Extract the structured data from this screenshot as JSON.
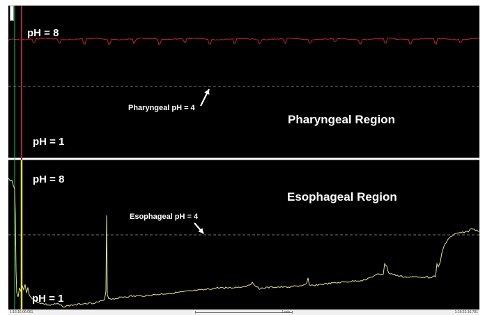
{
  "pharyngeal": {
    "ph_top": "pH = 8",
    "ph_bottom": "pH = 1",
    "threshold_label": "Pharyngeal  pH  = 4",
    "region_label": "Pharyngeal Region"
  },
  "esophageal": {
    "ph_top": "pH = 8",
    "ph_bottom": "pH = 1",
    "threshold_label": "Esophageal pH = 4",
    "region_label": "Esophageal Region"
  },
  "statusbar": {
    "time_start": "1:16:16.06:061",
    "scale": "1 min",
    "time_end": "1:16:21:16.781"
  },
  "colors": {
    "background": "#000000",
    "pharyngeal_trace": "#c0262a",
    "esophageal_trace": "#e6e68c",
    "yellow_marker": "#e8e800",
    "red_marker": "#b02040",
    "green_marker": "#20c060",
    "divider": "#ffffff",
    "threshold": "#9a9a9a"
  }
}
